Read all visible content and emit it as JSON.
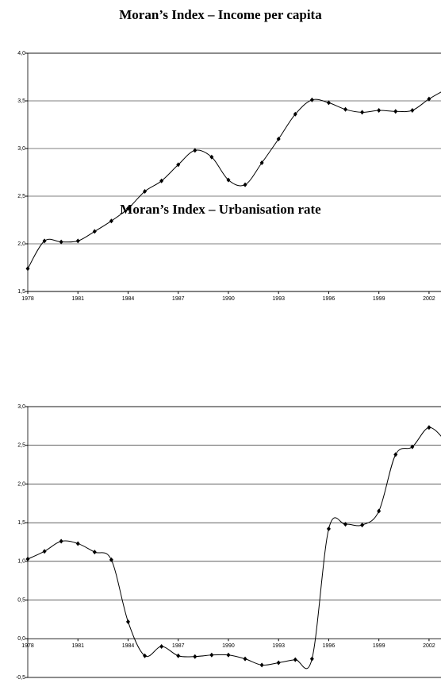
{
  "chart_data": [
    {
      "type": "line",
      "title": "Moran’s Index – Income per capita",
      "x": [
        1978,
        1979,
        1980,
        1981,
        1982,
        1983,
        1984,
        1985,
        1986,
        1987,
        1988,
        1989,
        1990,
        1991,
        1992,
        1993,
        1994,
        1995,
        1996,
        1997,
        1998,
        1999,
        2000,
        2001,
        2002,
        2003
      ],
      "series": [
        {
          "color": "#000000",
          "values": [
            1.74,
            2.03,
            2.02,
            2.03,
            2.13,
            2.24,
            2.37,
            2.55,
            2.66,
            2.83,
            2.98,
            2.91,
            2.67,
            2.62,
            2.85,
            3.1,
            3.36,
            3.51,
            3.48,
            3.41,
            3.38,
            3.4,
            3.39,
            3.4,
            3.52,
            3.62
          ]
        }
      ],
      "xlim": [
        1978,
        2003
      ],
      "xticks": [
        1978,
        1981,
        1984,
        1987,
        1990,
        1993,
        1996,
        1999,
        2002
      ],
      "ylim": [
        1.5,
        4.0
      ],
      "yticks": [
        {
          "value": 1.5,
          "label": "1,5"
        },
        {
          "value": 2.0,
          "label": "2,0"
        },
        {
          "value": 2.5,
          "label": "2,5"
        },
        {
          "value": 3.0,
          "label": "3,0"
        },
        {
          "value": 3.5,
          "label": "3,5"
        },
        {
          "value": 4.0,
          "label": "4,0"
        }
      ],
      "grid": true
    },
    {
      "type": "line",
      "title": "Moran’s Index – Urbanisation rate",
      "x": [
        1978,
        1979,
        1980,
        1981,
        1982,
        1983,
        1984,
        1985,
        1986,
        1987,
        1988,
        1989,
        1990,
        1991,
        1992,
        1993,
        1994,
        1995,
        1996,
        1997,
        1998,
        1999,
        2000,
        2001,
        2002,
        2003
      ],
      "series": [
        {
          "color": "#000000",
          "values": [
            1.03,
            1.13,
            1.26,
            1.23,
            1.12,
            1.02,
            0.22,
            -0.22,
            -0.1,
            -0.22,
            -0.23,
            -0.21,
            -0.21,
            -0.26,
            -0.34,
            -0.31,
            -0.27,
            -0.26,
            1.42,
            1.48,
            1.47,
            1.65,
            2.38,
            2.48,
            2.73,
            2.55
          ]
        }
      ],
      "xlim": [
        1978,
        2003
      ],
      "xticks": [
        1978,
        1981,
        1984,
        1987,
        1990,
        1993,
        1996,
        1999,
        2002
      ],
      "ylim": [
        -0.5,
        3.0
      ],
      "yticks": [
        {
          "value": -0.5,
          "label": "-0,5"
        },
        {
          "value": 0.0,
          "label": "0,0"
        },
        {
          "value": 0.5,
          "label": "0,5"
        },
        {
          "value": 1.0,
          "label": "1,0"
        },
        {
          "value": 1.5,
          "label": "1,5"
        },
        {
          "value": 2.0,
          "label": "2,0"
        },
        {
          "value": 2.5,
          "label": "2,5"
        },
        {
          "value": 3.0,
          "label": "3,0"
        }
      ],
      "grid": true
    }
  ]
}
